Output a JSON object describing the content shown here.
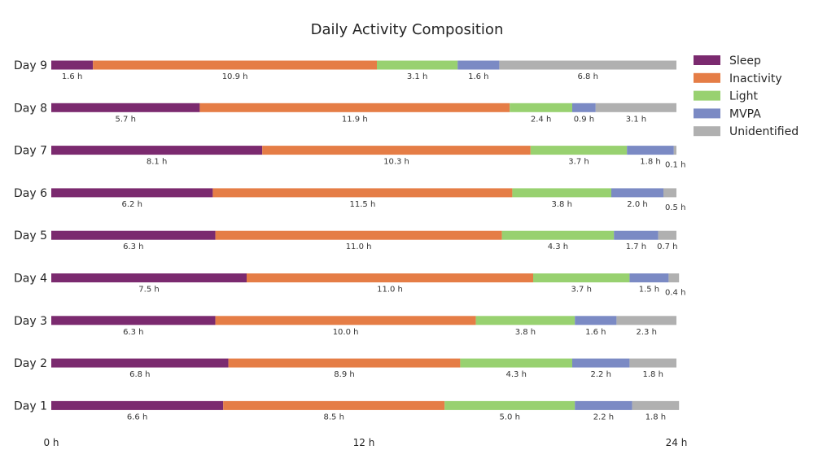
{
  "chart_data": {
    "type": "bar",
    "orientation": "horizontal",
    "stacked": true,
    "title": "Daily Activity Composition",
    "categories": [
      "Day 9",
      "Day 8",
      "Day 7",
      "Day 6",
      "Day 5",
      "Day 4",
      "Day 3",
      "Day 2",
      "Day 1"
    ],
    "series": [
      {
        "name": "Sleep",
        "color": "#7b2a6f",
        "values": [
          1.6,
          5.7,
          8.1,
          6.2,
          6.3,
          7.5,
          6.3,
          6.8,
          6.6
        ]
      },
      {
        "name": "Inactivity",
        "color": "#e57d46",
        "values": [
          10.9,
          11.9,
          10.3,
          11.5,
          11.0,
          11.0,
          10.0,
          8.9,
          8.5
        ]
      },
      {
        "name": "Light",
        "color": "#98d170",
        "values": [
          3.1,
          2.4,
          3.7,
          3.8,
          4.3,
          3.7,
          3.8,
          4.3,
          5.0
        ]
      },
      {
        "name": "MVPA",
        "color": "#7b8ac4",
        "values": [
          1.6,
          0.9,
          1.8,
          2.0,
          1.7,
          1.5,
          1.6,
          2.2,
          2.2
        ]
      },
      {
        "name": "Unidentified",
        "color": "#b0b0b0",
        "values": [
          6.8,
          3.1,
          0.1,
          0.5,
          0.7,
          0.4,
          2.3,
          1.8,
          1.8
        ]
      }
    ],
    "value_suffix": " h",
    "xlim": [
      0,
      24
    ],
    "xticks": [
      {
        "value": 0,
        "label": "0 h"
      },
      {
        "value": 12,
        "label": "12 h"
      },
      {
        "value": 24,
        "label": "24 h"
      }
    ],
    "grid": false,
    "legend": "top-right"
  }
}
